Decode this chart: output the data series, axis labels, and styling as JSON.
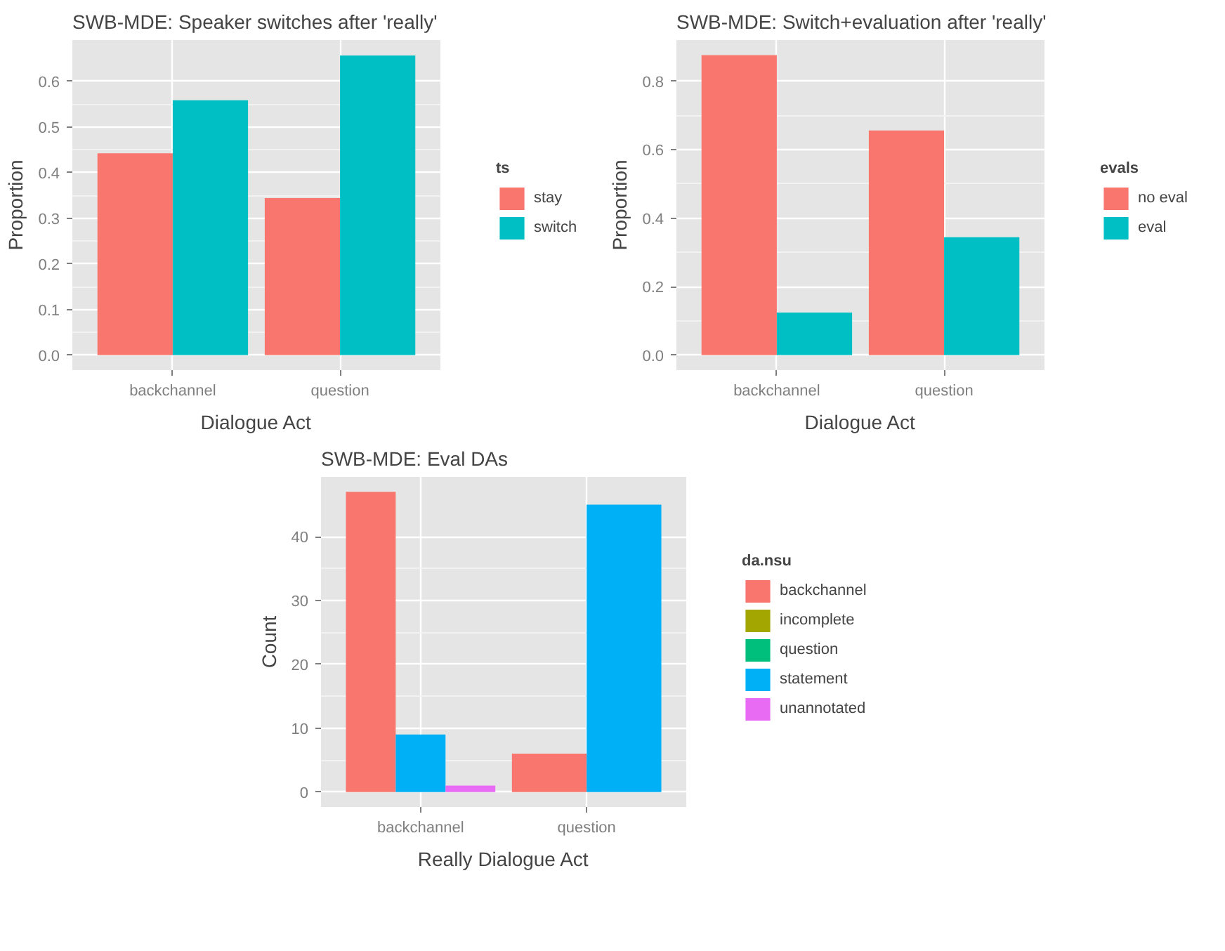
{
  "chart_data": [
    {
      "type": "bar",
      "title": "SWB-MDE: Speaker switches after 'really'",
      "xlabel": "Dialogue Act",
      "ylabel": "Proportion",
      "legend_title": "ts",
      "categories": [
        "backchannel",
        "question"
      ],
      "ylim": [
        -0.033,
        0.69
      ],
      "yticks": [
        {
          "value": 0,
          "label": "0.0"
        },
        0.1,
        0.2,
        0.3,
        0.4,
        0.5,
        0.6
      ],
      "grid": true,
      "legend": "right",
      "series": [
        {
          "name": "stay",
          "color": "#f8766d",
          "values": [
            0.442,
            0.344
          ]
        },
        {
          "name": "switch",
          "color": "#00bfc4",
          "values": [
            0.558,
            0.656
          ]
        }
      ]
    },
    {
      "type": "bar",
      "title": "SWB-MDE: Switch+evaluation after 'really'",
      "xlabel": "Dialogue Act",
      "ylabel": "Proportion",
      "legend_title": "evals",
      "categories": [
        "backchannel",
        "question"
      ],
      "ylim": [
        -0.044,
        0.92
      ],
      "yticks": [
        {
          "value": 0,
          "label": "0.0"
        },
        0.2,
        0.4,
        0.6,
        0.8
      ],
      "grid": true,
      "legend": "right",
      "series": [
        {
          "name": "no eval",
          "color": "#f8766d",
          "values": [
            0.876,
            0.656
          ]
        },
        {
          "name": "eval",
          "color": "#00bfc4",
          "values": [
            0.124,
            0.344
          ]
        }
      ]
    },
    {
      "type": "bar",
      "title": "SWB-MDE: Eval DAs",
      "xlabel": "Really Dialogue Act",
      "ylabel": "Count",
      "legend_title": "da.nsu",
      "categories": [
        "backchannel",
        "question"
      ],
      "ylim": [
        -2.35,
        49.35
      ],
      "yticks": [
        0,
        10,
        20,
        30,
        40
      ],
      "grid": true,
      "legend": "right",
      "series": [
        {
          "name": "backchannel",
          "color": "#f8766d",
          "values": [
            47,
            6
          ]
        },
        {
          "name": "incomplete",
          "color": "#a3a500",
          "values": [
            null,
            null
          ]
        },
        {
          "name": "question",
          "color": "#00bf7d",
          "values": [
            null,
            null
          ]
        },
        {
          "name": "statement",
          "color": "#00b0f6",
          "values": [
            9,
            45
          ]
        },
        {
          "name": "unannotated",
          "color": "#e76bf3",
          "values": [
            1,
            null
          ]
        }
      ]
    }
  ]
}
